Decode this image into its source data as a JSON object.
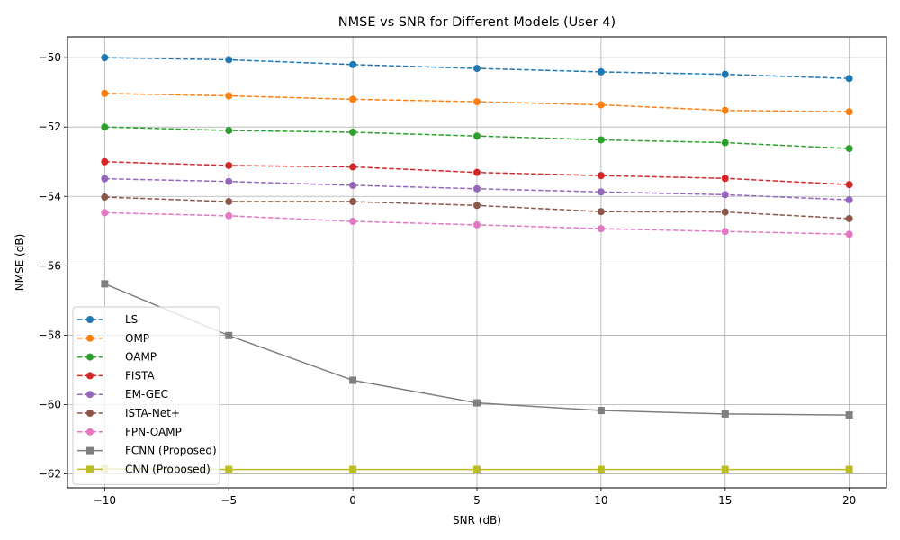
{
  "chart_data": {
    "type": "line",
    "title": "NMSE vs SNR for Different Models (User 4)",
    "xlabel": "SNR (dB)",
    "ylabel": "NMSE (dB)",
    "x": [
      -10,
      -5,
      0,
      5,
      10,
      15,
      20
    ],
    "xlim": [
      -11.5,
      21.5
    ],
    "ylim": [
      -62.4,
      -49.4
    ],
    "xticks": [
      -10,
      -5,
      0,
      5,
      10,
      15,
      20
    ],
    "xtick_labels": [
      "−10",
      "−5",
      "0",
      "5",
      "10",
      "15",
      "20"
    ],
    "yticks": [
      -62,
      -60,
      -58,
      -56,
      -54,
      -52,
      -50
    ],
    "ytick_labels": [
      "−62",
      "−60",
      "−58",
      "−56",
      "−54",
      "−52",
      "−50"
    ],
    "grid": true,
    "legend_position": "lower-left",
    "series": [
      {
        "name": "LS",
        "color": "#1f77b4",
        "linestyle": "dashed",
        "marker": "circle",
        "values": [
          -50.0,
          -50.06,
          -50.2,
          -50.31,
          -50.41,
          -50.48,
          -50.6
        ]
      },
      {
        "name": "OMP",
        "color": "#ff7f0e",
        "linestyle": "dashed",
        "marker": "circle",
        "values": [
          -51.03,
          -51.1,
          -51.2,
          -51.27,
          -51.36,
          -51.52,
          -51.56
        ]
      },
      {
        "name": "OAMP",
        "color": "#2ca02c",
        "linestyle": "dashed",
        "marker": "circle",
        "values": [
          -52.0,
          -52.1,
          -52.15,
          -52.26,
          -52.37,
          -52.45,
          -52.62
        ]
      },
      {
        "name": "FISTA",
        "color": "#d62728",
        "linestyle": "dashed",
        "marker": "circle",
        "values": [
          -53.0,
          -53.11,
          -53.15,
          -53.31,
          -53.4,
          -53.48,
          -53.66
        ]
      },
      {
        "name": "EM-GEC",
        "color": "#9467bd",
        "linestyle": "dashed",
        "marker": "circle",
        "values": [
          -53.49,
          -53.57,
          -53.68,
          -53.78,
          -53.87,
          -53.95,
          -54.1
        ]
      },
      {
        "name": "ISTA-Net+",
        "color": "#8c564b",
        "linestyle": "dashed",
        "marker": "circle",
        "values": [
          -54.02,
          -54.15,
          -54.15,
          -54.26,
          -54.44,
          -54.45,
          -54.64
        ]
      },
      {
        "name": "FPN-OAMP",
        "color": "#e377c2",
        "linestyle": "dashed",
        "marker": "circle",
        "values": [
          -54.47,
          -54.56,
          -54.72,
          -54.82,
          -54.93,
          -55.01,
          -55.09
        ]
      },
      {
        "name": "FCNN (Proposed)",
        "color": "#7f7f7f",
        "linestyle": "solid",
        "marker": "square",
        "values": [
          -56.52,
          -58.01,
          -59.3,
          -59.95,
          -60.17,
          -60.27,
          -60.3
        ]
      },
      {
        "name": "CNN (Proposed)",
        "color": "#bcbd22",
        "linestyle": "solid",
        "marker": "square",
        "values": [
          -61.85,
          -61.87,
          -61.87,
          -61.87,
          -61.87,
          -61.87,
          -61.87
        ]
      }
    ]
  }
}
